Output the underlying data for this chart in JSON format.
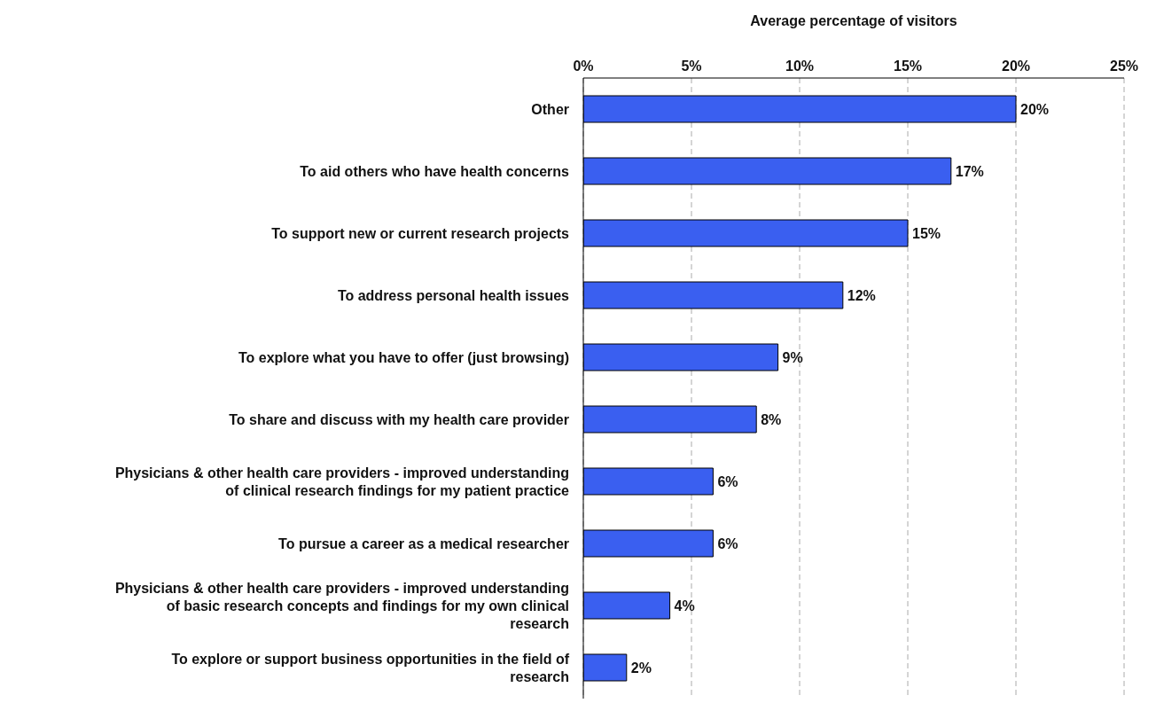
{
  "chart_data": {
    "type": "bar",
    "orientation": "horizontal",
    "xlabel": "Average percentage of visitors",
    "categories": [
      "Other",
      "To aid others who have health concerns",
      "To support new or current research projects",
      "To address personal health issues",
      "To explore what you have to offer (just browsing)",
      "To share and discuss with my health care provider",
      "Physicians & other health care providers - improved understanding of clinical research findings for my patient practice",
      "To pursue a career as a medical researcher",
      "Physicians & other health care providers - improved understanding of basic research concepts and findings for my own clinical research",
      "To explore or support business opportunities in the field of research"
    ],
    "values": [
      20,
      17,
      15,
      12,
      9,
      8,
      6,
      6,
      4,
      2
    ],
    "value_labels": [
      "20%",
      "17%",
      "15%",
      "12%",
      "9%",
      "8%",
      "6%",
      "6%",
      "4%",
      "2%"
    ],
    "color": "#3a5ff0",
    "xlim": [
      0,
      25
    ],
    "xticks": [
      {
        "value": 0,
        "label": "0%"
      },
      {
        "value": 5,
        "label": "5%"
      },
      {
        "value": 10,
        "label": "10%"
      },
      {
        "value": 15,
        "label": "15%"
      },
      {
        "value": 20,
        "label": "20%"
      },
      {
        "value": 25,
        "label": "25%"
      }
    ],
    "grid": "x",
    "legend": false
  }
}
